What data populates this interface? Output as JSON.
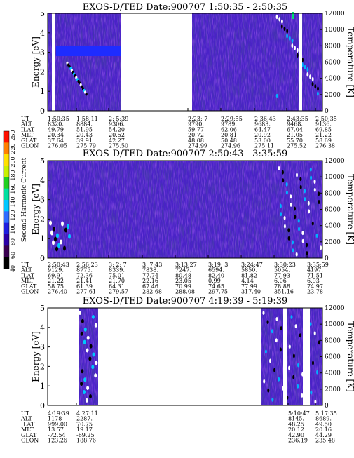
{
  "chart_data": [
    {
      "type": "heatmap",
      "title": "EXOS-D/TED   Date:900707  1:50:35 - 2:50:35",
      "ylabel": "Energy [eV]",
      "y2label": "Temperature [K]",
      "ylim": [
        0,
        5
      ],
      "y2lim": [
        0,
        12000
      ],
      "yticks": [
        0,
        1,
        2,
        3,
        4,
        5
      ],
      "y2ticks": [
        0,
        2000,
        4000,
        6000,
        8000,
        10000,
        12000
      ],
      "xticks": [
        "1:50:35",
        "1:58:11",
        "2: 5:39",
        "2:23: 7",
        "2:29:55",
        "2:36:43",
        "2:43:35",
        "2:50:35"
      ],
      "row_labels": [
        "UT",
        "ALT",
        "ILAT",
        "MLT",
        "GLAT",
        "GLON"
      ],
      "table": [
        [
          "8320.",
          "8884.",
          "9306.",
          "9790.",
          "9789.",
          "9683.",
          "9468.",
          "9136."
        ],
        [
          "49.79",
          "51.95",
          "54.20",
          "59.77",
          "62.06",
          "64.47",
          "67.04",
          "69.85"
        ],
        [
          "20.34",
          "20.43",
          "20.52",
          "20.72",
          "20.81",
          "20.92",
          "21.05",
          "21.22"
        ],
        [
          "37.64",
          "39.91",
          "42.27",
          "48.08",
          "50.48",
          "53.00",
          "55.70",
          "58.69"
        ],
        [
          "276.05",
          "275.79",
          "275.50",
          "274.99",
          "274.96",
          "275.11",
          "275.52",
          "276.38"
        ]
      ],
      "data_gaps_fraction": [
        [
          0.031,
          0.055
        ],
        [
          0.172,
          0.525
        ]
      ],
      "features": "enhanced flux band at ~3 eV from 1:50 to 2:05 UT; wave-like temperature structure after 2:36 UT"
    },
    {
      "type": "heatmap",
      "title": "EXOS-D/TED   Date:900707  2:50:43 - 3:35:59",
      "ylabel": "Energy [eV]",
      "y2label": "Temperature [K]",
      "ylim": [
        0,
        5
      ],
      "y2lim": [
        0,
        12000
      ],
      "yticks": [
        0,
        1,
        2,
        3,
        4,
        5
      ],
      "y2ticks": [
        0,
        2000,
        4000,
        6000,
        8000,
        10000,
        12000
      ],
      "xticks": [
        "2:50:43",
        "2:56:23",
        "3: 2: 7",
        "3: 7:43",
        "3:13:27",
        "3:19: 3",
        "3:24:47",
        "3:30:23",
        "3:35:59"
      ],
      "row_labels": [
        "UT",
        "ALT",
        "ILAT",
        "MLT",
        "GLAT",
        "GLON"
      ],
      "table": [
        [
          "9129.",
          "8775.",
          "8339.",
          "7838.",
          "7247.",
          "6594.",
          "5850.",
          "5054.",
          "4197."
        ],
        [
          "69.91",
          "72.36",
          "75.01",
          "77.74",
          "80.48",
          "82.40",
          "81.82",
          "77.93",
          "71.51"
        ],
        [
          "21.22",
          "21.41",
          "21.70",
          "22.16",
          "23.05",
          "0.99",
          "4.14",
          "6.06",
          "6.93"
        ],
        [
          "58.75",
          "61.39",
          "64.31",
          "67.46",
          "70.99",
          "74.65",
          "77.99",
          "78.88",
          "74.97"
        ],
        [
          "276.40",
          "277.61",
          "279.57",
          "282.68",
          "288.08",
          "297.75",
          "317.40",
          "351.16",
          "23.78"
        ]
      ]
    },
    {
      "type": "heatmap",
      "title": "EXOS-D/TED   Date:900707  4:19:39 - 5:19:39",
      "ylabel": "Energy [eV]",
      "y2label": "Temperature [K]",
      "ylim": [
        0,
        5
      ],
      "y2lim": [
        0,
        12000
      ],
      "yticks": [
        0,
        1,
        2,
        3,
        4,
        5
      ],
      "y2ticks": [
        0,
        2000,
        4000,
        6000,
        8000,
        10000,
        12000
      ],
      "xticks": [
        "4:19:39",
        "4:27:11",
        "5:10:47",
        "5:17:35"
      ],
      "row_labels": [
        "UT",
        "ALT",
        "ILAT",
        "MLT",
        "GLAT",
        "GLON"
      ],
      "table": [
        [
          "1178",
          "2287.",
          "8145.",
          "8689."
        ],
        [
          "999.00",
          "70.75",
          "48.25",
          "49.50"
        ],
        [
          "13.57",
          "19.17",
          "20.12",
          "20.16"
        ],
        [
          "-72.54",
          "-69.25",
          "42.90",
          "44.29"
        ],
        [
          "123.26",
          "188.76",
          "236.19",
          "235.48"
        ]
      ]
    }
  ],
  "colorbar": {
    "label": "Second Harmonic Current",
    "ticks": [
      "40",
      "60",
      "80",
      "100",
      "120",
      "140",
      "160",
      "180",
      "200",
      "220",
      "250"
    ],
    "colors": [
      "#000000",
      "#3a0050",
      "#2b00a8",
      "#1f1fe0",
      "#2f6cff",
      "#00c8ff",
      "#00e0a0",
      "#20d020",
      "#c8f000",
      "#ffe000",
      "#ff8000",
      "#ff1000"
    ]
  }
}
